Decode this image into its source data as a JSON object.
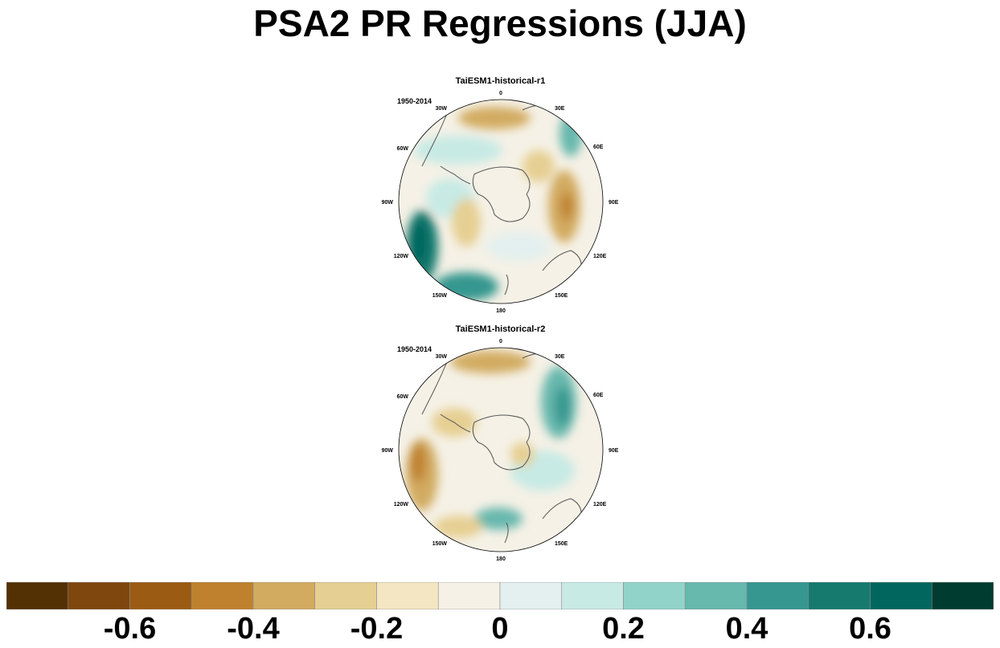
{
  "title": "PSA2 PR Regressions (JJA)",
  "panels": [
    {
      "name": "TaiESM1-historical-r1",
      "period": "1950-2014"
    },
    {
      "name": "TaiESM1-historical-r2",
      "period": "1950-2014"
    }
  ],
  "longitude_labels": [
    "0",
    "30E",
    "60E",
    "90E",
    "120E",
    "150E",
    "180",
    "150W",
    "120W",
    "90W",
    "60W",
    "30W"
  ],
  "colorbar": {
    "colors": [
      "#543005",
      "#7f470e",
      "#9c5b13",
      "#bf812d",
      "#d2ab61",
      "#e6cf92",
      "#f5e6c3",
      "#f5f1e6",
      "#e3f0ef",
      "#c7eae5",
      "#92d3c9",
      "#67b8ad",
      "#35978f",
      "#167a6e",
      "#01665e",
      "#003c30"
    ],
    "tick_labels": [
      "-0.6",
      "-0.4",
      "-0.2",
      "0",
      "0.2",
      "0.4",
      "0.6"
    ]
  }
}
